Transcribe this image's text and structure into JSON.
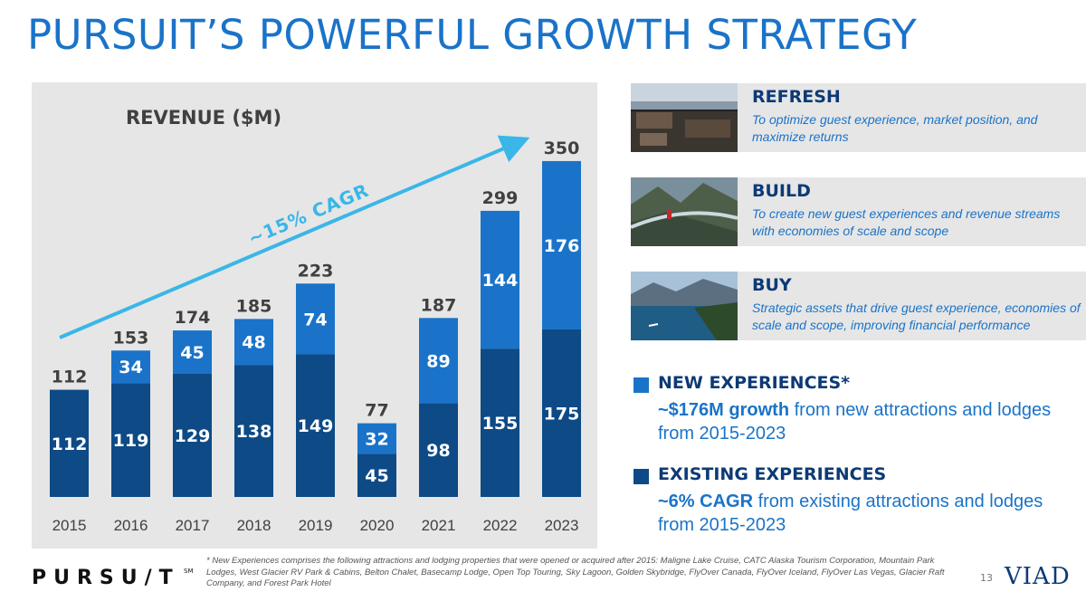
{
  "title": "PURSUIT’S POWERFUL GROWTH STRATEGY",
  "colors": {
    "existing": "#0d4a86",
    "new": "#1a73c8",
    "accent": "#1a73c8",
    "cagr_arrow": "#3ab6e8",
    "panel": "#e6e6e6"
  },
  "chart_data": {
    "type": "bar",
    "stacked": true,
    "title": "REVENUE ($M)",
    "categories": [
      "2015",
      "2016",
      "2017",
      "2018",
      "2019",
      "2020",
      "2021",
      "2022",
      "2023"
    ],
    "series": [
      {
        "name": "Existing Experiences",
        "values": [
          112,
          119,
          129,
          138,
          149,
          45,
          98,
          155,
          175
        ]
      },
      {
        "name": "New Experiences",
        "values": [
          null,
          34,
          45,
          48,
          74,
          32,
          89,
          144,
          176
        ]
      }
    ],
    "segment_labels": {
      "existing": [
        "112",
        "119",
        "129",
        "138",
        "149",
        "45",
        "98",
        "155",
        "175"
      ],
      "new": [
        "",
        "34",
        "45",
        "48",
        "74",
        "32",
        "89",
        "144",
        "176"
      ]
    },
    "totals": [
      112,
      153,
      174,
      185,
      223,
      77,
      187,
      299,
      350
    ],
    "ylim": [
      0,
      350
    ],
    "annotation": "~15% CAGR"
  },
  "cards": [
    {
      "heading": "REFRESH",
      "desc": "To optimize guest experience, market position, and maximize returns",
      "photo": "restaurant-photo"
    },
    {
      "heading": "BUILD",
      "desc": "To create new guest experiences and revenue streams with economies of scale and scope",
      "photo": "skywalk-photo"
    },
    {
      "heading": "BUY",
      "desc": "Strategic assets that drive guest experience, economies of scale and scope, improving financial performance",
      "photo": "lake-photo"
    }
  ],
  "legend": {
    "new_title": "NEW EXPERIENCES*",
    "new_bold": "~$176M growth",
    "new_desc": " from new attractions and lodges from 2015-2023",
    "existing_title": "EXISTING EXPERIENCES",
    "existing_bold": "~6% CAGR",
    "existing_desc": " from existing attractions and lodges from 2015-2023"
  },
  "footer": {
    "logo": "PURSU/T",
    "logo_mark": "SM",
    "footnote": "* New Experiences comprises the following attractions and lodging properties that were opened or acquired after 2015: Maligne Lake Cruise, CATC Alaska Tourism Corporation, Mountain Park Lodges, West Glacier RV Park & Cabins, Belton Chalet, Basecamp Lodge, Open Top Touring, Sky Lagoon, Golden Skybridge, FlyOver Canada, FlyOver Iceland, FlyOver Las Vegas, Glacier Raft Company, and Forest Park Hotel",
    "page_number": "13",
    "brand": "VIAD"
  }
}
